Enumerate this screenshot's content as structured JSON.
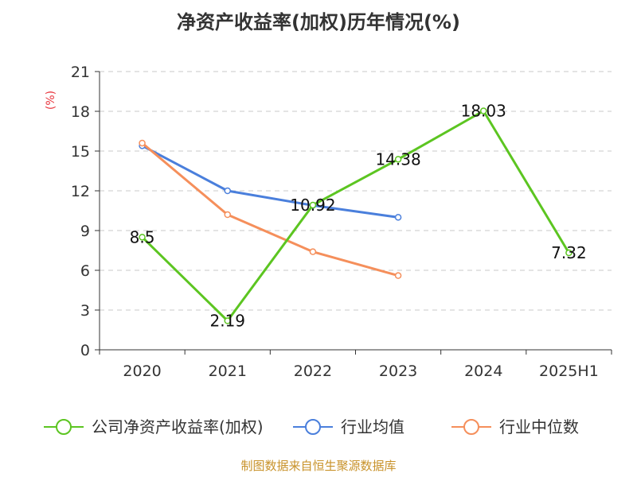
{
  "chart_data": {
    "type": "line",
    "title": "净资产收益率(加权)历年情况(%)",
    "y_unit": "(%)",
    "categories": [
      "2020",
      "2021",
      "2022",
      "2023",
      "2024",
      "2025H1"
    ],
    "ylim": [
      0,
      21
    ],
    "yticks": [
      0,
      3,
      6,
      9,
      12,
      15,
      18,
      21
    ],
    "grid": true,
    "legend_position": "bottom",
    "series": [
      {
        "name": "公司净资产收益率(加权)",
        "color": "#5cc521",
        "values": [
          8.5,
          2.19,
          10.92,
          14.38,
          18.03,
          7.32
        ],
        "data_labels": [
          "8.5",
          "2.19",
          "10.92",
          "14.38",
          "18.03",
          "7.32"
        ]
      },
      {
        "name": "行业均值",
        "color": "#4a7fdc",
        "values": [
          15.4,
          12.0,
          10.9,
          10.0,
          null,
          null
        ]
      },
      {
        "name": "行业中位数",
        "color": "#f58f5b",
        "values": [
          15.6,
          10.2,
          7.4,
          5.6,
          null,
          null
        ]
      }
    ],
    "source": "制图数据来自恒生聚源数据库"
  }
}
